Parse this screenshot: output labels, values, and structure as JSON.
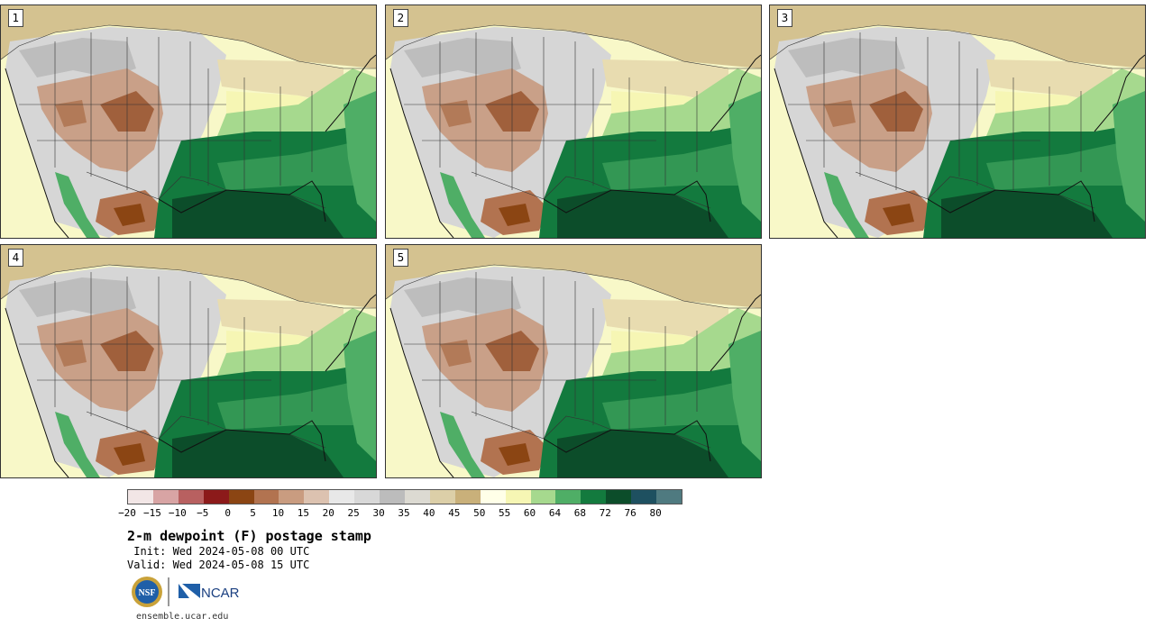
{
  "panels": [
    {
      "label": "1"
    },
    {
      "label": "2"
    },
    {
      "label": "3"
    },
    {
      "label": "4"
    },
    {
      "label": "5"
    }
  ],
  "colorbar": {
    "ticks": [
      "−20",
      "−15",
      "−10",
      "−5",
      "0",
      "5",
      "10",
      "15",
      "20",
      "25",
      "30",
      "35",
      "40",
      "45",
      "50",
      "55",
      "60",
      "64",
      "68",
      "72",
      "76",
      "80"
    ],
    "colors": [
      "#f2e6e6",
      "#d8a4a4",
      "#b86060",
      "#8c1a1a",
      "#8b4513",
      "#b27350",
      "#c99c80",
      "#dcc2b0",
      "#e8e8e8",
      "#d8d8d8",
      "#bcbcbc",
      "#dcdad2",
      "#dccfa8",
      "#c9b07a",
      "#ffffe8",
      "#f6f6b4",
      "#a6d98e",
      "#4fae66",
      "#137a3e",
      "#0c4d2a",
      "#1e5060",
      "#4f7a80"
    ]
  },
  "title": "2-m dewpoint (F) postage stamp",
  "init": " Init: Wed 2024-05-08 00 UTC",
  "valid": "Valid: Wed 2024-05-08 15 UTC",
  "logos": {
    "nsf": "NSF",
    "ncar": "NCAR"
  },
  "website": "ensemble.ucar.edu"
}
